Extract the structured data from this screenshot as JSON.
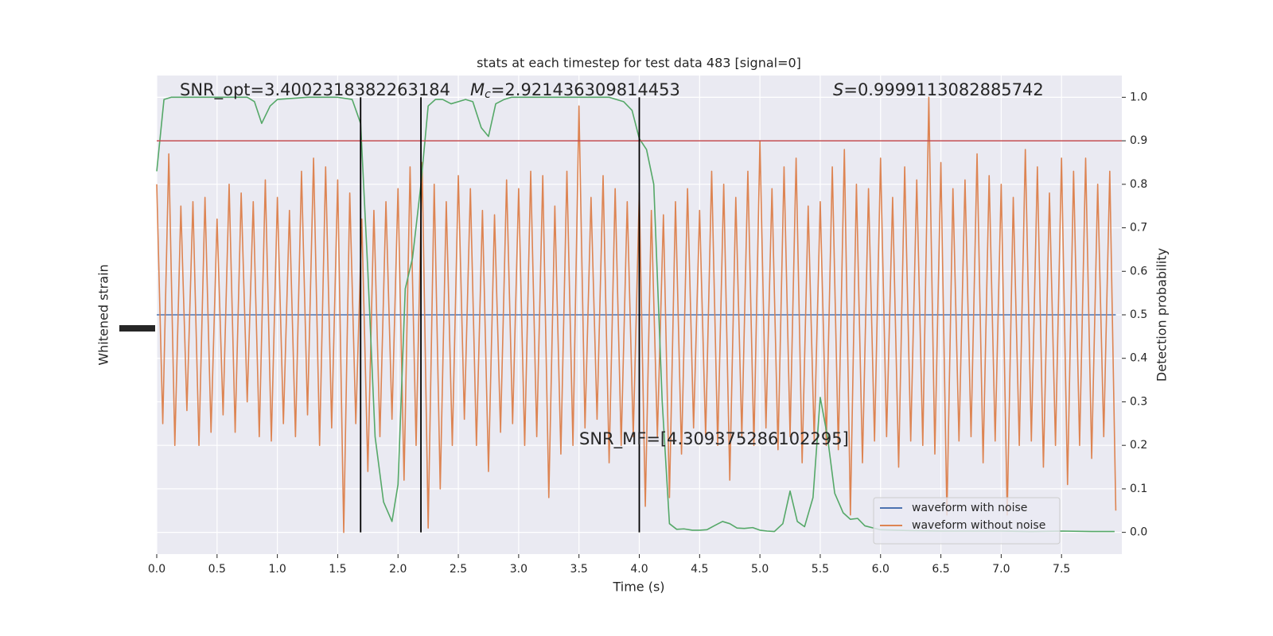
{
  "chart_data": {
    "type": "line",
    "title": "stats at each timestep for test data 483 [signal=0]",
    "xlabel": "Time (s)",
    "ylabel": "Whitened strain",
    "y2label": "Detection probability",
    "xlim": [
      0,
      8
    ],
    "xticks": [
      {
        "value": 0,
        "label": "0.0"
      },
      0.5,
      {
        "value": 1,
        "label": "1.0"
      },
      1.5,
      {
        "value": 2,
        "label": "2.0"
      },
      2.5,
      {
        "value": 3,
        "label": "3.0"
      },
      3.5,
      {
        "value": 4,
        "label": "4.0"
      },
      4.5,
      {
        "value": 5,
        "label": "5.0"
      },
      5.5,
      {
        "value": 6,
        "label": "6.0"
      },
      6.5,
      {
        "value": 7,
        "label": "7.0"
      },
      7.5
    ],
    "ylim": [
      -0.05,
      1.05
    ],
    "y2lim": [
      -0.05,
      1.05
    ],
    "y2ticks": [
      {
        "value": 0,
        "label": "0.0"
      },
      0.1,
      0.2,
      0.3,
      0.4,
      0.5,
      0.6,
      0.7,
      0.8,
      0.9,
      {
        "value": 1,
        "label": "1.0"
      }
    ],
    "grid": true,
    "legend": "lower right",
    "series": [
      {
        "name": "waveform with noise",
        "color": "#4c72b0",
        "x": [
          0,
          7.95
        ],
        "values": [
          0.5,
          0.5
        ]
      },
      {
        "name": "waveform without noise",
        "color": "#dd8452",
        "x": [
          0,
          0.05,
          0.1,
          0.15,
          0.2,
          0.25,
          0.3,
          0.35,
          0.4,
          0.45,
          0.5,
          0.55,
          0.6,
          0.65,
          0.7,
          0.75,
          0.8,
          0.85,
          0.9,
          0.95,
          1,
          1.05,
          1.1,
          1.15,
          1.2,
          1.25,
          1.3,
          1.35,
          1.4,
          1.45,
          1.5,
          1.55,
          1.6,
          1.65,
          1.7,
          1.75,
          1.8,
          1.85,
          1.9,
          1.95,
          2,
          2.05,
          2.1,
          2.15,
          2.2,
          2.25,
          2.3,
          2.35,
          2.4,
          2.45,
          2.5,
          2.55,
          2.6,
          2.65,
          2.7,
          2.75,
          2.8,
          2.85,
          2.9,
          2.95,
          3,
          3.05,
          3.1,
          3.15,
          3.2,
          3.25,
          3.3,
          3.35,
          3.4,
          3.45,
          3.5,
          3.55,
          3.6,
          3.65,
          3.7,
          3.75,
          3.8,
          3.85,
          3.9,
          3.95,
          4,
          4.05,
          4.1,
          4.15,
          4.2,
          4.25,
          4.3,
          4.35,
          4.4,
          4.45,
          4.5,
          4.55,
          4.6,
          4.65,
          4.7,
          4.75,
          4.8,
          4.85,
          4.9,
          4.95,
          5,
          5.05,
          5.1,
          5.15,
          5.2,
          5.25,
          5.3,
          5.35,
          5.4,
          5.45,
          5.5,
          5.55,
          5.6,
          5.65,
          5.7,
          5.75,
          5.8,
          5.85,
          5.9,
          5.95,
          6,
          6.05,
          6.1,
          6.15,
          6.2,
          6.25,
          6.3,
          6.35,
          6.4,
          6.45,
          6.5,
          6.55,
          6.6,
          6.65,
          6.7,
          6.75,
          6.8,
          6.85,
          6.9,
          6.95,
          7,
          7.05,
          7.1,
          7.15,
          7.2,
          7.25,
          7.3,
          7.35,
          7.4,
          7.45,
          7.5,
          7.55,
          7.6,
          7.65,
          7.7,
          7.75,
          7.8,
          7.85,
          7.9,
          7.95
        ],
        "values": [
          0.8,
          0.25,
          0.87,
          0.2,
          0.75,
          0.28,
          0.76,
          0.2,
          0.77,
          0.23,
          0.72,
          0.27,
          0.8,
          0.23,
          0.78,
          0.3,
          0.76,
          0.22,
          0.81,
          0.21,
          0.77,
          0.25,
          0.74,
          0.22,
          0.83,
          0.27,
          0.86,
          0.2,
          0.84,
          0.24,
          0.81,
          0.0,
          0.78,
          0.25,
          0.72,
          0.14,
          0.74,
          0.22,
          0.76,
          0.26,
          0.79,
          0.12,
          0.84,
          0.2,
          0.85,
          0.01,
          0.8,
          0.1,
          0.76,
          0.2,
          0.82,
          0.26,
          0.79,
          0.2,
          0.74,
          0.14,
          0.73,
          0.23,
          0.81,
          0.25,
          0.79,
          0.2,
          0.83,
          0.22,
          0.82,
          0.08,
          0.75,
          0.18,
          0.83,
          0.2,
          0.98,
          0.24,
          0.77,
          0.26,
          0.82,
          0.16,
          0.79,
          0.2,
          0.76,
          0.22,
          0.78,
          0.06,
          0.74,
          0.22,
          0.73,
          0.08,
          0.76,
          0.18,
          0.79,
          0.24,
          0.74,
          0.22,
          0.83,
          0.2,
          0.8,
          0.12,
          0.77,
          0.22,
          0.83,
          0.2,
          0.9,
          0.24,
          0.79,
          0.19,
          0.84,
          0.22,
          0.86,
          0.16,
          0.75,
          0.21,
          0.76,
          0.2,
          0.84,
          0.19,
          0.88,
          0.04,
          0.8,
          0.16,
          0.79,
          0.21,
          0.86,
          0.22,
          0.77,
          0.15,
          0.84,
          0.21,
          0.81,
          0.2,
          1.0,
          0.18,
          0.85,
          0.04,
          0.79,
          0.21,
          0.81,
          0.22,
          0.87,
          0.16,
          0.82,
          0.21,
          0.8,
          0.04,
          0.77,
          0.2,
          0.88,
          0.21,
          0.84,
          0.15,
          0.78,
          0.2,
          0.86,
          0.11,
          0.83,
          0.2,
          0.86,
          0.17,
          0.8,
          0.22,
          0.83,
          0.05
        ]
      },
      {
        "color": "#55a868",
        "axis": "y2",
        "x": [
          0,
          0.06,
          0.12,
          0.25,
          0.5,
          0.75,
          0.81,
          0.87,
          0.94,
          1.0,
          1.25,
          1.5,
          1.62,
          1.69,
          1.75,
          1.81,
          1.88,
          1.95,
          2.0,
          2.06,
          2.12,
          2.19,
          2.25,
          2.31,
          2.37,
          2.44,
          2.5,
          2.56,
          2.62,
          2.69,
          2.75,
          2.81,
          2.88,
          2.94,
          3.25,
          3.5,
          3.75,
          3.81,
          3.87,
          3.94,
          4.0,
          4.06,
          4.12,
          4.19,
          4.25,
          4.31,
          4.37,
          4.44,
          4.5,
          4.56,
          4.62,
          4.69,
          4.75,
          4.81,
          4.87,
          4.94,
          5.0,
          5.06,
          5.12,
          5.19,
          5.25,
          5.31,
          5.37,
          5.44,
          5.5,
          5.56,
          5.62,
          5.69,
          5.75,
          5.81,
          5.87,
          5.94,
          6.0,
          6.25,
          6.5,
          6.75,
          7.0,
          7.25,
          7.5,
          7.75,
          7.94
        ],
        "values": [
          0.83,
          0.995,
          1.0,
          1.0,
          1.0,
          1.0,
          0.99,
          0.94,
          0.98,
          0.995,
          1.0,
          1.0,
          0.995,
          0.94,
          0.6,
          0.22,
          0.07,
          0.025,
          0.11,
          0.56,
          0.63,
          0.8,
          0.98,
          0.995,
          0.995,
          0.985,
          0.99,
          0.995,
          0.99,
          0.93,
          0.91,
          0.985,
          0.995,
          1.0,
          1.0,
          1.0,
          1.0,
          0.995,
          0.99,
          0.97,
          0.905,
          0.88,
          0.8,
          0.3,
          0.02,
          0.007,
          0.008,
          0.005,
          0.005,
          0.006,
          0.015,
          0.025,
          0.02,
          0.01,
          0.009,
          0.011,
          0.005,
          0.003,
          0.002,
          0.02,
          0.095,
          0.025,
          0.013,
          0.08,
          0.31,
          0.22,
          0.09,
          0.045,
          0.03,
          0.032,
          0.015,
          0.01,
          0.006,
          0.004,
          0.003,
          0.003,
          0.003,
          0.002,
          0.003,
          0.002,
          0.002
        ]
      }
    ],
    "hline": {
      "value": 0.9,
      "color": "#c44e52"
    },
    "vlines": {
      "x": [
        1.69,
        2.19,
        4.0
      ],
      "color": "#000000"
    },
    "annotations": [
      {
        "text": "SNR_opt=3.4002318382263184"
      },
      {
        "symbol": "M",
        "subscript": "c",
        "text": "=2.921436309814453"
      },
      {
        "symbol": "S",
        "text": "=0.9999113082885742"
      },
      {
        "text": "SNR_MF=[4.309375286102295]"
      }
    ]
  }
}
